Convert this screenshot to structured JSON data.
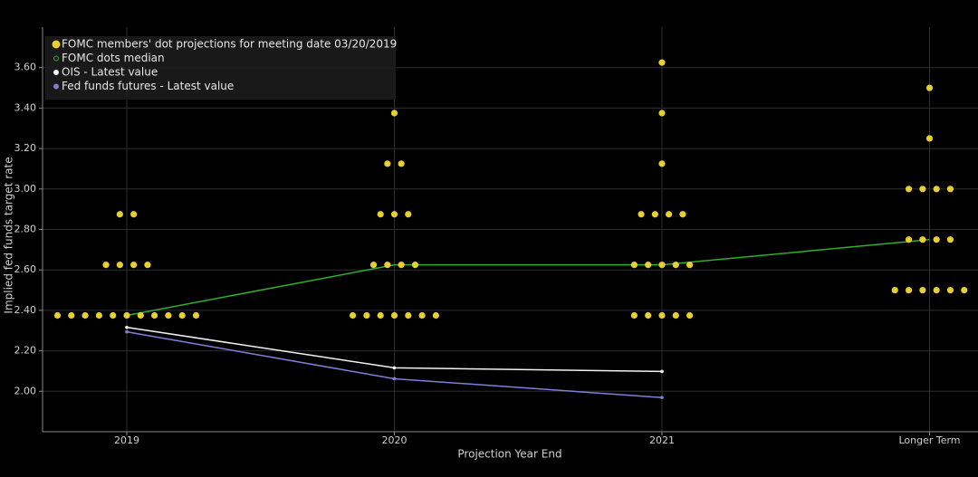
{
  "chart_data": {
    "type": "dot_plot",
    "categories": [
      "2019",
      "2020",
      "2021",
      "Longer Term"
    ],
    "x_label": "Projection Year End",
    "y_label": "Implied fed funds target rate",
    "ylim": [
      1.8,
      3.8
    ],
    "yticks": [
      {
        "value": 2.0,
        "label": "2.00"
      },
      {
        "value": 2.2,
        "label": "2.20"
      },
      {
        "value": 2.4,
        "label": "2.40"
      },
      {
        "value": 2.6,
        "label": "2.60"
      },
      {
        "value": 2.8,
        "label": "2.80"
      },
      {
        "value": 3.0,
        "label": "3.00"
      },
      {
        "value": 3.2,
        "label": "3.20"
      },
      {
        "value": 3.4,
        "label": "3.40"
      },
      {
        "value": 3.6,
        "label": "3.60"
      }
    ],
    "grid": true,
    "dots": {
      "name": "FOMC members' dot projections for meeting date 03/20/2019",
      "color": "#e8cf2e",
      "values": [
        [
          2.375,
          2.375,
          2.375,
          2.375,
          2.375,
          2.375,
          2.375,
          2.375,
          2.375,
          2.375,
          2.375,
          2.625,
          2.625,
          2.625,
          2.625,
          2.875,
          2.875
        ],
        [
          2.375,
          2.375,
          2.375,
          2.375,
          2.375,
          2.375,
          2.375,
          2.625,
          2.625,
          2.625,
          2.625,
          2.875,
          2.875,
          2.875,
          3.125,
          3.125,
          3.375
        ],
        [
          2.375,
          2.375,
          2.375,
          2.375,
          2.375,
          2.625,
          2.625,
          2.625,
          2.625,
          2.625,
          2.875,
          2.875,
          2.875,
          2.875,
          3.125,
          3.375,
          3.625
        ],
        [
          2.5,
          2.5,
          2.5,
          2.5,
          2.5,
          2.5,
          2.75,
          2.75,
          2.75,
          2.75,
          3.0,
          3.0,
          3.0,
          3.0,
          3.25,
          3.5
        ]
      ]
    },
    "series": [
      {
        "name": "FOMC dots median",
        "color": "#2fae2f",
        "values": [
          2.375,
          2.625,
          2.625,
          2.75
        ]
      },
      {
        "name": "OIS - Latest value",
        "color": "#f2f2f2",
        "values": [
          2.316,
          2.116,
          2.098,
          null
        ]
      },
      {
        "name": "Fed funds futures - Latest value",
        "color": "#7d7fd8",
        "values": [
          2.294,
          2.062,
          1.969,
          null
        ]
      }
    ]
  }
}
